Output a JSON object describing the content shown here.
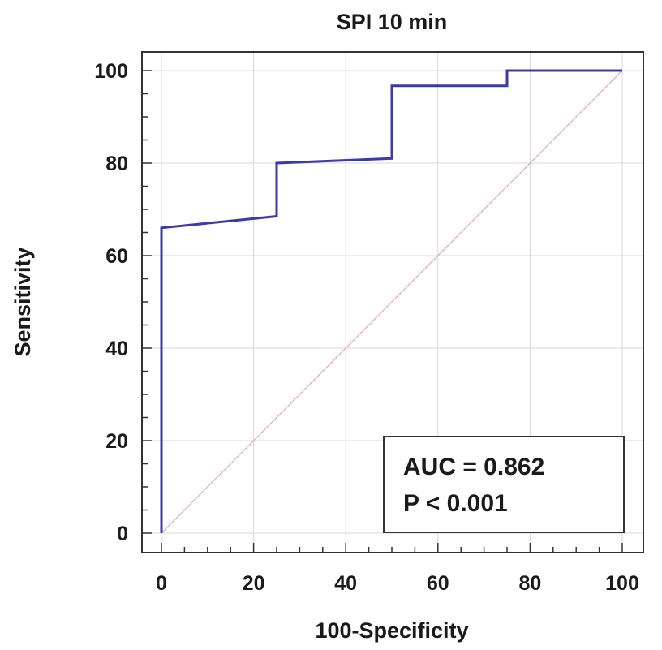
{
  "chart_data": {
    "type": "line",
    "title": "SPI 10 min",
    "xlabel": "100-Specificity",
    "ylabel": "Sensitivity",
    "xlim": [
      0,
      100
    ],
    "ylim": [
      0,
      100
    ],
    "xticks": [
      0,
      20,
      40,
      60,
      80,
      100
    ],
    "yticks": [
      0,
      20,
      40,
      60,
      80,
      100
    ],
    "grid": true,
    "series": [
      {
        "color": "#3b3ba8",
        "points": [
          [
            0,
            0
          ],
          [
            0,
            66
          ],
          [
            20,
            68
          ],
          [
            25,
            68.5
          ],
          [
            25,
            80
          ],
          [
            50,
            81
          ],
          [
            50,
            96.7
          ],
          [
            75,
            96.7
          ],
          [
            75,
            100
          ],
          [
            100,
            100
          ]
        ]
      },
      {
        "color": "#e3a8b6",
        "points": [
          [
            0,
            0
          ],
          [
            100,
            100
          ]
        ]
      }
    ],
    "annotations": [
      "AUC = 0.862",
      "P < 0.001"
    ]
  }
}
